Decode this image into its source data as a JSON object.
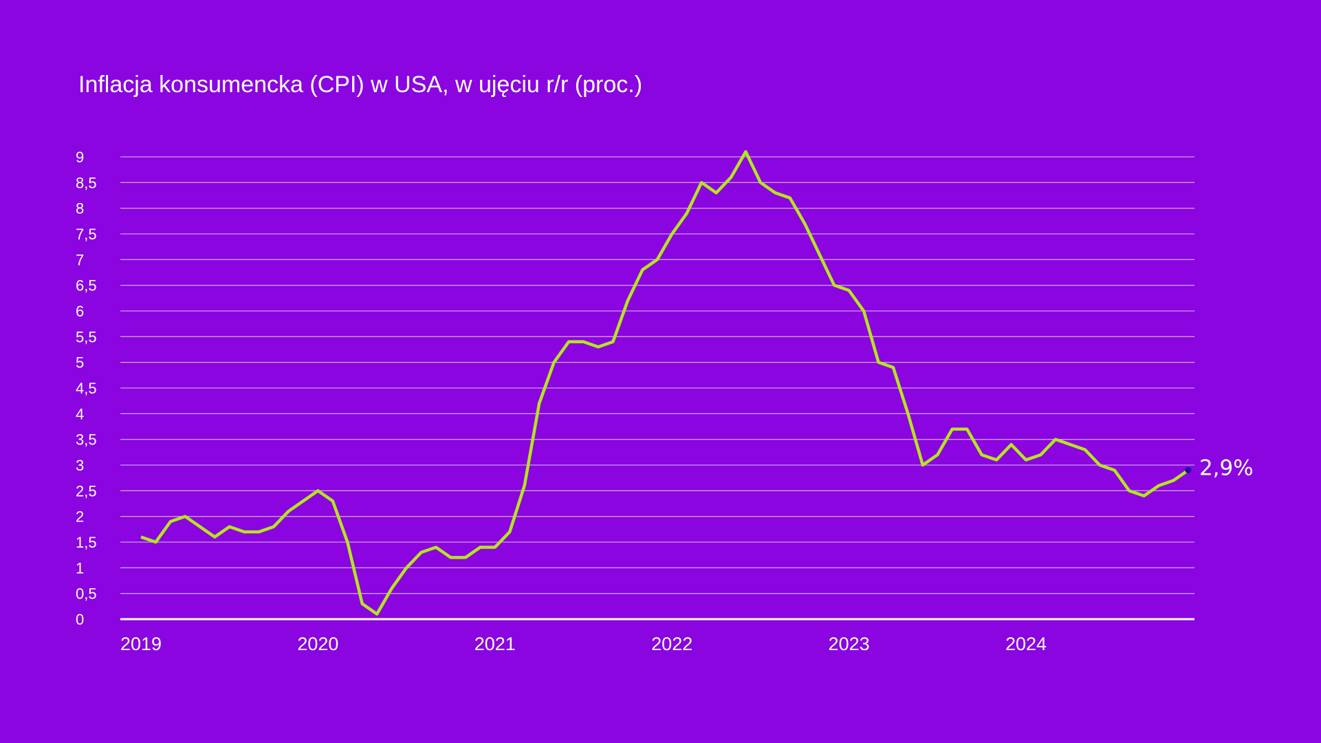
{
  "chart_data": {
    "type": "line",
    "title": "Inflacja konsumencka (CPI) w USA, w ujęciu r/r (proc.)",
    "xlabel": "",
    "ylabel": "",
    "ylim": [
      0,
      9
    ],
    "y_ticks": [
      "0",
      "0,5",
      "1",
      "1,5",
      "2",
      "2,5",
      "3",
      "3,5",
      "4",
      "4,5",
      "5",
      "5,5",
      "6",
      "6,5",
      "7",
      "7,5",
      "8",
      "8,5",
      "9"
    ],
    "x_ticks": [
      "2019",
      "2020",
      "2021",
      "2022",
      "2023",
      "2024"
    ],
    "x_start": "2019-01",
    "x_frequency": "monthly",
    "grid": true,
    "end_label": "2,9%",
    "colors": {
      "background": "#8a05df",
      "line": "#b4e61f",
      "end_dot": "#1a0aa0",
      "grid": "#ffffff"
    },
    "series": [
      {
        "values": [
          1.6,
          1.5,
          1.9,
          2.0,
          1.8,
          1.6,
          1.8,
          1.7,
          1.7,
          1.8,
          2.1,
          2.3,
          2.5,
          2.3,
          1.5,
          0.3,
          0.1,
          0.6,
          1.0,
          1.3,
          1.4,
          1.2,
          1.2,
          1.4,
          1.4,
          1.7,
          2.6,
          4.2,
          5.0,
          5.4,
          5.4,
          5.3,
          5.4,
          6.2,
          6.8,
          7.0,
          7.5,
          7.9,
          8.5,
          8.3,
          8.6,
          9.1,
          8.5,
          8.3,
          8.2,
          7.7,
          7.1,
          6.5,
          6.4,
          6.0,
          5.0,
          4.9,
          4.0,
          3.0,
          3.2,
          3.7,
          3.7,
          3.2,
          3.1,
          3.4,
          3.1,
          3.2,
          3.5,
          3.4,
          3.3,
          3.0,
          2.9,
          2.5,
          2.4,
          2.6,
          2.7,
          2.9
        ]
      }
    ]
  }
}
